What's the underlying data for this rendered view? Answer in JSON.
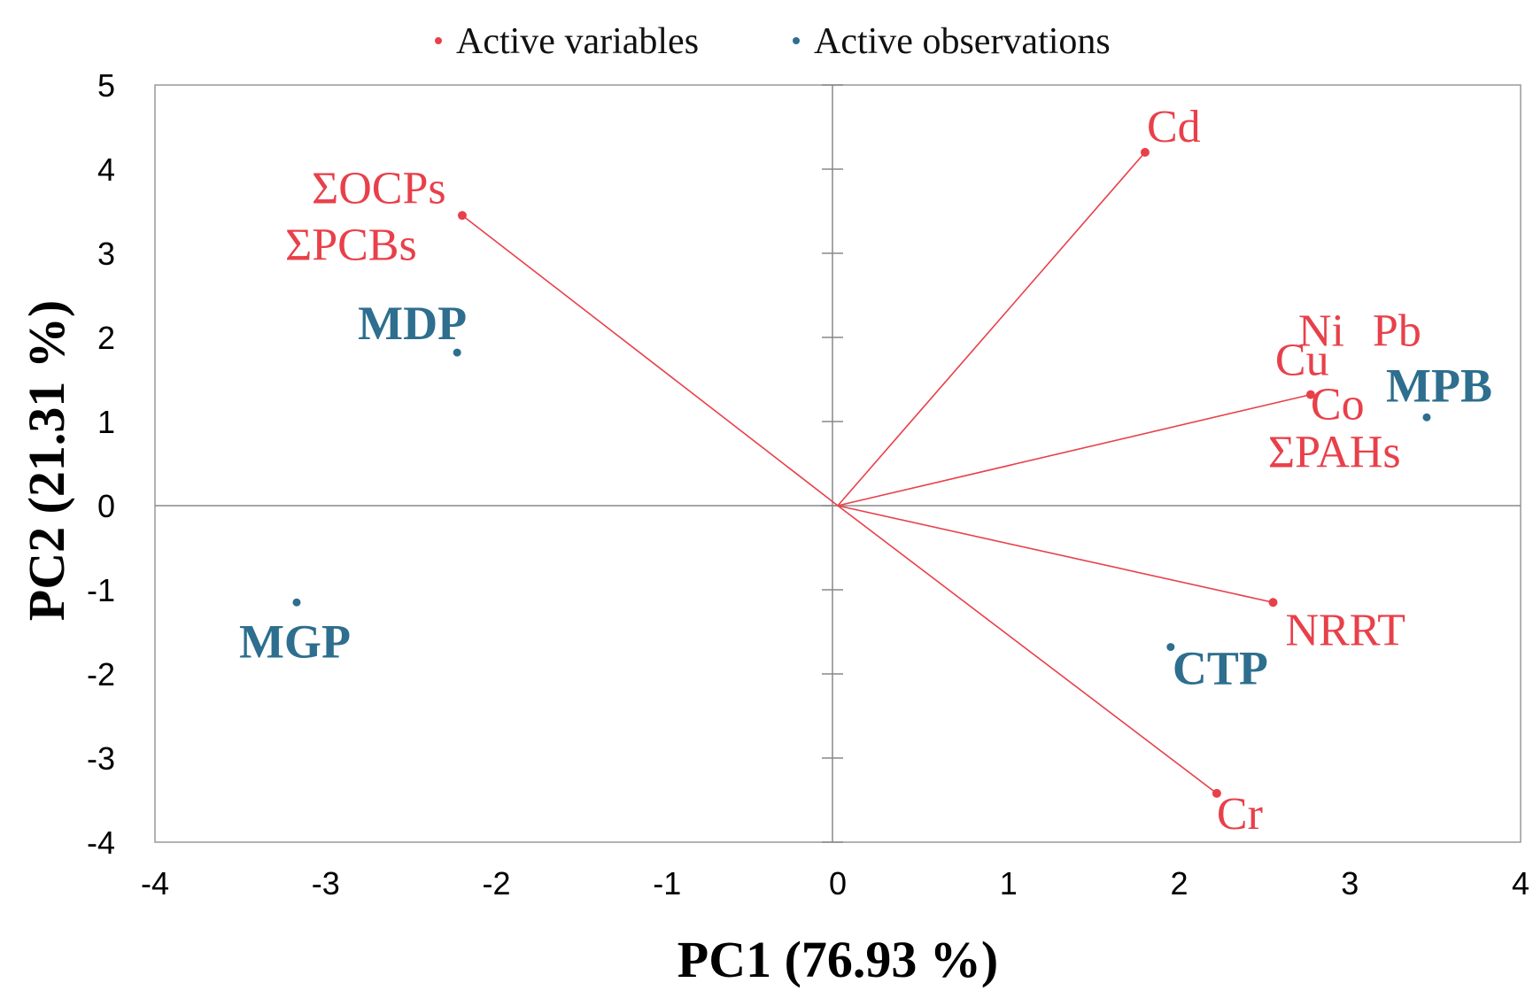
{
  "colors": {
    "variables": "#e8404a",
    "observations": "#2e6e8e",
    "axis": "#888888",
    "frame": "#999999"
  },
  "legend": {
    "variables_label": "Active variables",
    "observations_label": "Active observations"
  },
  "chart_data": {
    "type": "scatter",
    "title": "",
    "xlabel": "PC1 (76.93 %)",
    "ylabel": "PC2 (21.31 %)",
    "xlim": [
      -4,
      4
    ],
    "ylim": [
      -4,
      5
    ],
    "xticks": [
      "-4",
      "-3",
      "-2",
      "-1",
      "0",
      "1",
      "2",
      "3",
      "4"
    ],
    "yticks": [
      "-4",
      "-3",
      "-2",
      "-1",
      "0",
      "1",
      "2",
      "3",
      "4",
      "5"
    ],
    "grid": false,
    "legend_position": "top",
    "variables": [
      {
        "name": "ΣOCPs",
        "x": -2.2,
        "y": 3.45
      },
      {
        "name": "ΣPCBs",
        "x": -2.2,
        "y": 3.45
      },
      {
        "name": "Cd",
        "x": 1.8,
        "y": 4.2
      },
      {
        "name": "Ni",
        "x": 2.77,
        "y": 1.32
      },
      {
        "name": "Pb",
        "x": 2.77,
        "y": 1.32
      },
      {
        "name": "Cu",
        "x": 2.77,
        "y": 1.32
      },
      {
        "name": "Co",
        "x": 2.77,
        "y": 1.32
      },
      {
        "name": "ΣPAHs",
        "x": 2.77,
        "y": 1.32
      },
      {
        "name": "NRRT",
        "x": 2.55,
        "y": -1.15
      },
      {
        "name": "Cr",
        "x": 2.22,
        "y": -3.42
      }
    ],
    "observations": [
      {
        "name": "MDP",
        "x": -2.23,
        "y": 1.82
      },
      {
        "name": "MPB",
        "x": 3.45,
        "y": 1.05
      },
      {
        "name": "MGP",
        "x": -3.17,
        "y": -1.15
      },
      {
        "name": "CTP",
        "x": 1.95,
        "y": -1.68
      }
    ]
  }
}
